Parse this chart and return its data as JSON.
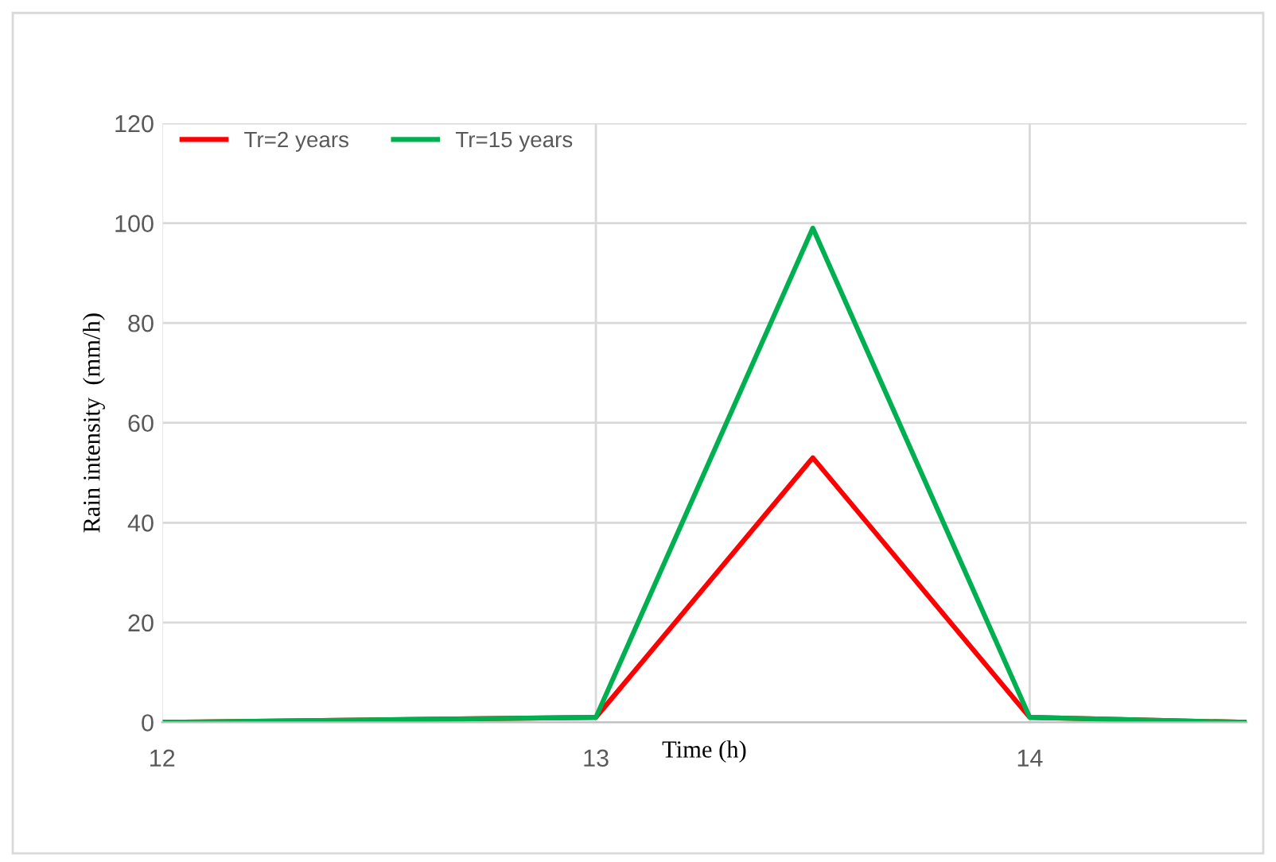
{
  "chart_data": {
    "type": "line",
    "xlabel": "Time (h)",
    "ylabel": "Rain intensity  (mm/h)",
    "x": [
      12,
      13,
      13.5,
      14,
      14.5
    ],
    "series": [
      {
        "name": "Tr=2 years",
        "color": "#ff0000",
        "values": [
          0,
          1,
          53,
          1,
          0
        ]
      },
      {
        "name": "Tr=15 years",
        "color": "#00b050",
        "values": [
          0,
          1,
          99,
          1,
          0
        ]
      }
    ],
    "xlim": [
      12,
      14.5
    ],
    "xticks": [
      12,
      13,
      14
    ],
    "ylim": [
      0,
      120
    ],
    "yticks": [
      0,
      20,
      40,
      60,
      80,
      100,
      120
    ],
    "grid": true,
    "legend": "top left",
    "marker": "none",
    "line_style": "solid"
  }
}
